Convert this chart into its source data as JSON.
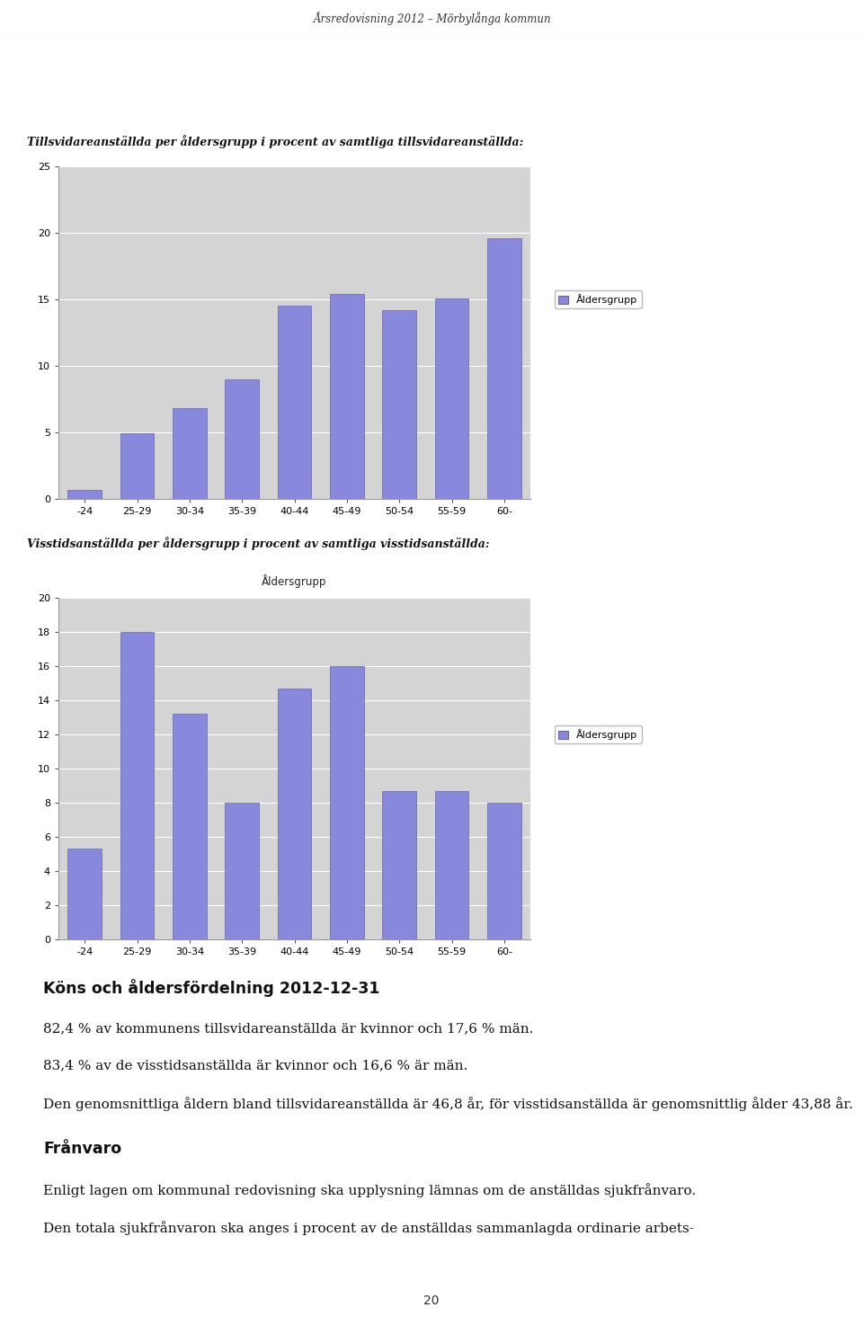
{
  "page_title": "Årsredovisning 2012 – Mörbylånga kommun",
  "page_number": "20",
  "chart1_title": "Tillsvidareanställda per åldersgrupp i procent av samtliga tillsvidareanställda:",
  "chart1_categories": [
    "-24",
    "25-29",
    "30-34",
    "35-39",
    "40-44",
    "45-49",
    "50-54",
    "55-59",
    "60-"
  ],
  "chart1_values": [
    0.7,
    4.9,
    6.8,
    9.0,
    14.5,
    15.4,
    14.2,
    15.1,
    19.6
  ],
  "chart1_ylim": [
    0,
    25
  ],
  "chart1_yticks": [
    0,
    5,
    10,
    15,
    20,
    25
  ],
  "chart1_legend": "Åldersgrupp",
  "chart2_title": "Visstidsanställda per åldersgrupp i procent av samtliga visstidsanställda:",
  "chart2_categories": [
    "-24",
    "25-29",
    "30-34",
    "35-39",
    "40-44",
    "45-49",
    "50-54",
    "55-59",
    "60-"
  ],
  "chart2_values": [
    5.3,
    18.0,
    13.2,
    8.0,
    14.7,
    16.0,
    8.7,
    8.7,
    8.0
  ],
  "chart2_ylim": [
    0,
    20
  ],
  "chart2_yticks": [
    0,
    2,
    4,
    6,
    8,
    10,
    12,
    14,
    16,
    18,
    20
  ],
  "chart2_legend": "Åldersgrupp",
  "bar_color": "#8888dd",
  "bar_edge_color": "#6666aa",
  "chart_bg_color": "#d4d4d4",
  "legend_box_color": "#8888dd",
  "text_block": [
    {
      "text": "Köns och åldersfördelning 2012-12-31",
      "bold": true,
      "fontsize": 12.5
    },
    {
      "text": "82,4 % av kommunens tillsvidareanställda är kvinnor och 17,6 % män.",
      "bold": false,
      "fontsize": 11
    },
    {
      "text": "83,4 % av de visstidsanställda är kvinnor och 16,6 % är män.",
      "bold": false,
      "fontsize": 11
    },
    {
      "text": "Den genomsnittliga åldern bland tillsvidareanställda är 46,8 år, för visstidsanställda är genomsnittlig ålder 43,88 år.",
      "bold": false,
      "fontsize": 11,
      "wrap": true
    },
    {
      "text": "Frånvaro",
      "bold": true,
      "fontsize": 12.5
    },
    {
      "text": "Enligt lagen om kommunal redovisning ska upplysning lämnas om de anställdas sjukfrånvaro.",
      "bold": false,
      "fontsize": 11
    },
    {
      "text": "Den totala sjukfrånvaron ska anges i procent av de anställdas sammanlagda ordinarie arbets-",
      "bold": false,
      "fontsize": 11
    }
  ],
  "page_bg": "#ffffff",
  "figsize": [
    9.6,
    14.84
  ],
  "dpi": 100
}
